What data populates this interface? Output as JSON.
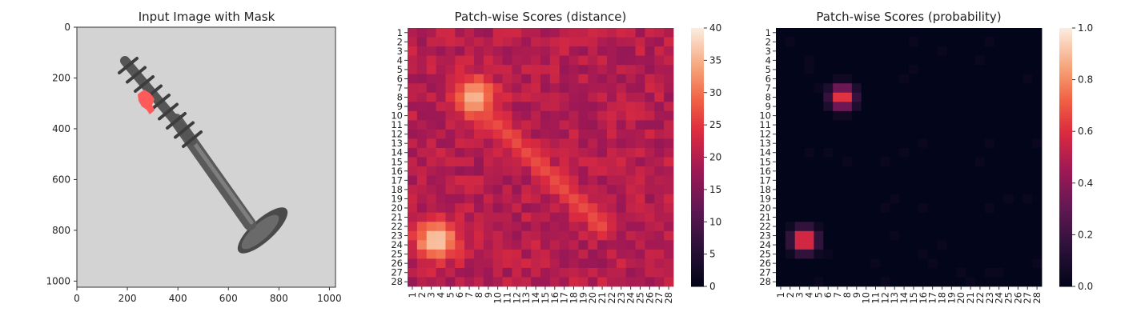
{
  "chart_data": [
    {
      "type": "image",
      "title": "Input Image with Mask",
      "xlim": [
        0,
        1024
      ],
      "ylim": [
        1024,
        0
      ],
      "xticks": [
        0,
        200,
        400,
        600,
        800,
        1000
      ],
      "yticks": [
        0,
        200,
        400,
        600,
        800,
        1000
      ],
      "image": "grayscale photo of a screw on a light background",
      "mask_color": "#ff5a5a"
    },
    {
      "type": "heatmap",
      "title": "Patch-wise Scores (distance)",
      "rows": 28,
      "cols": 28,
      "row_labels": [
        "1",
        "2",
        "3",
        "4",
        "5",
        "6",
        "7",
        "8",
        "9",
        "10",
        "11",
        "12",
        "13",
        "14",
        "15",
        "16",
        "17",
        "18",
        "19",
        "20",
        "21",
        "22",
        "23",
        "24",
        "25",
        "26",
        "27",
        "28"
      ],
      "col_labels": [
        "1",
        "2",
        "3",
        "4",
        "5",
        "6",
        "7",
        "8",
        "9",
        "10",
        "11",
        "12",
        "13",
        "14",
        "15",
        "16",
        "17",
        "18",
        "19",
        "20",
        "21",
        "22",
        "23",
        "24",
        "25",
        "26",
        "27",
        "28"
      ],
      "vmin": 0,
      "vmax": 40,
      "colorbar_ticks": [
        0,
        5,
        10,
        15,
        20,
        25,
        30,
        35,
        40
      ],
      "colormap": "rocket",
      "base_value": 20,
      "hotspots": [
        {
          "row": 8,
          "col": 7.5,
          "peak": 36
        },
        {
          "row": 23.5,
          "col": 3.5,
          "peak": 38
        }
      ],
      "diagonal_ridge": {
        "from": [
          10,
          9
        ],
        "to": [
          22,
          21
        ],
        "value": 27
      }
    },
    {
      "type": "heatmap",
      "title": "Patch-wise Scores (probability)",
      "rows": 28,
      "cols": 28,
      "row_labels": [
        "1",
        "2",
        "3",
        "4",
        "5",
        "6",
        "7",
        "8",
        "9",
        "10",
        "11",
        "12",
        "13",
        "14",
        "15",
        "16",
        "17",
        "18",
        "19",
        "20",
        "21",
        "22",
        "23",
        "24",
        "25",
        "26",
        "27",
        "28"
      ],
      "col_labels": [
        "1",
        "2",
        "3",
        "4",
        "5",
        "6",
        "7",
        "8",
        "9",
        "10",
        "11",
        "12",
        "13",
        "14",
        "15",
        "16",
        "17",
        "18",
        "19",
        "20",
        "21",
        "22",
        "23",
        "24",
        "25",
        "26",
        "27",
        "28"
      ],
      "vmin": 0.0,
      "vmax": 1.0,
      "colorbar_ticks": [
        "0.0",
        "0.2",
        "0.4",
        "0.6",
        "0.8",
        "1.0"
      ],
      "colormap": "rocket",
      "hotspots": [
        {
          "row": 8,
          "col": 7.5,
          "peak": 0.72
        },
        {
          "row": 23.5,
          "col": 3.5,
          "peak": 0.78
        }
      ]
    }
  ]
}
